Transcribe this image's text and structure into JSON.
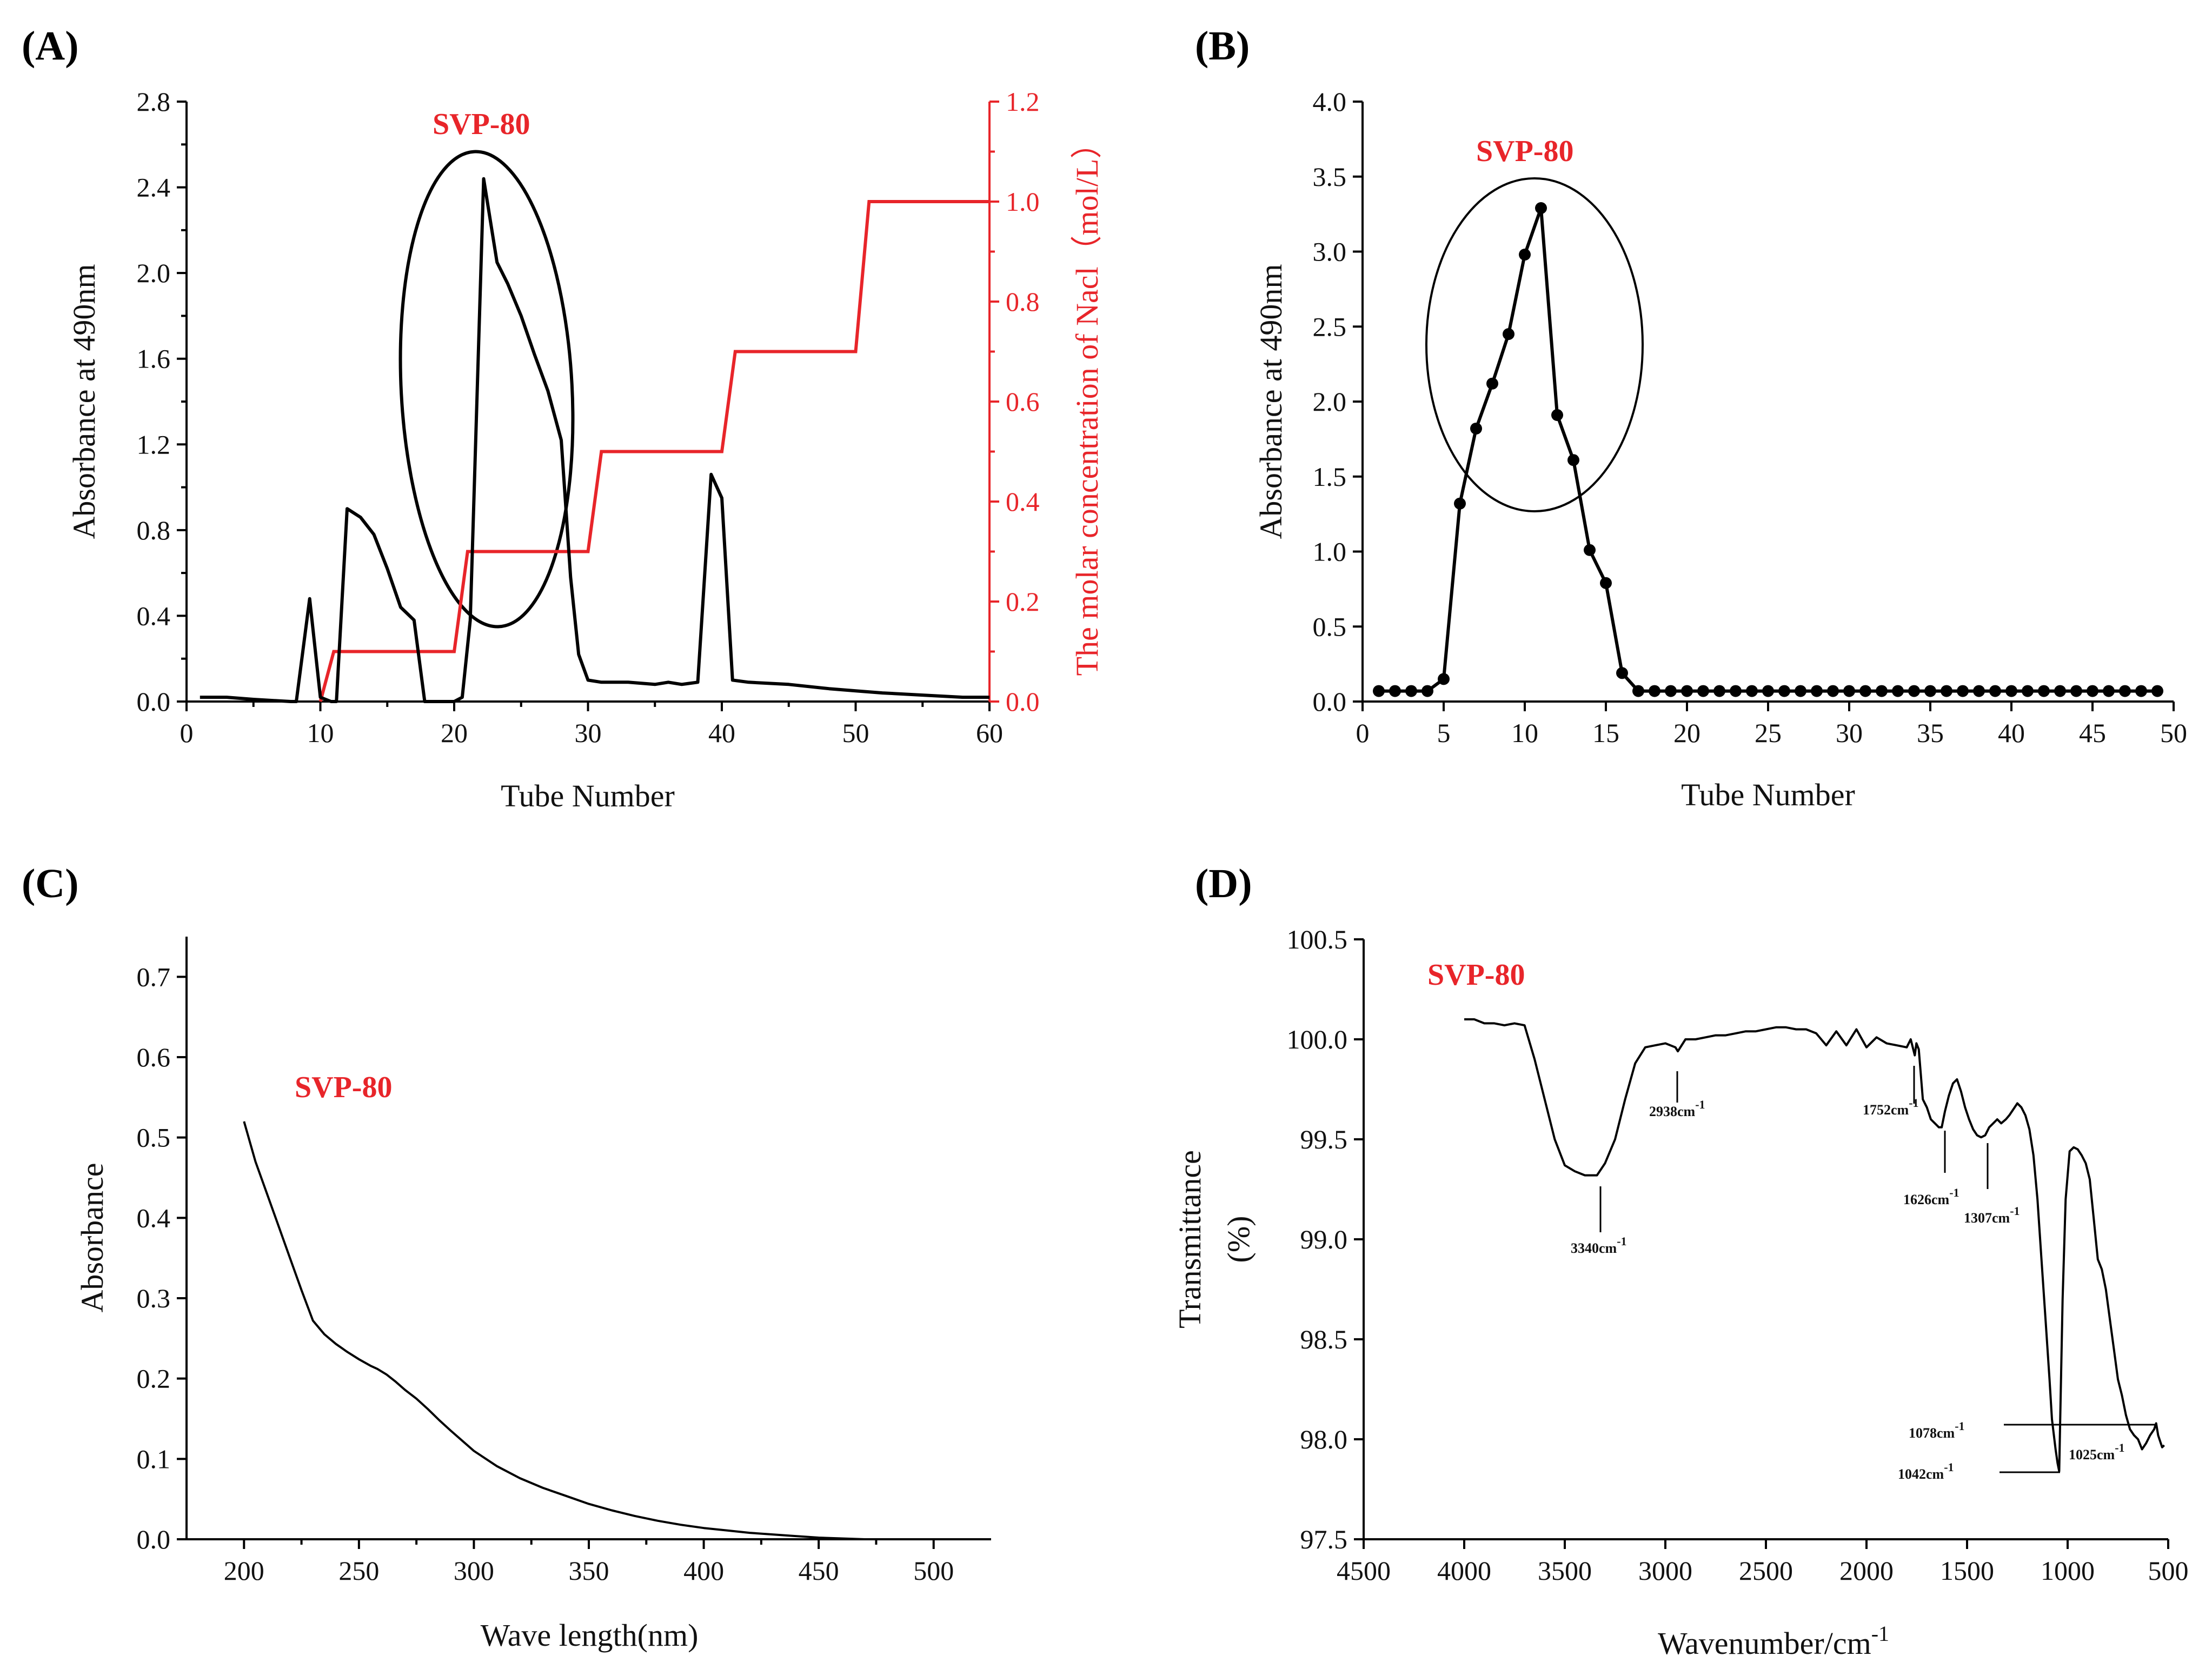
{
  "chart_data": [
    {
      "id": "A",
      "type": "line",
      "panel_label": "(A)",
      "annotation": "SVP-80",
      "xlabel": "Tube Number",
      "ylabel": "Absorbance at 490nm",
      "y2label": "The molar concentration of Nacl（mol/L）",
      "xlim": [
        0,
        60
      ],
      "ylim": [
        0,
        2.8
      ],
      "y2lim": [
        0,
        1.2
      ],
      "xticks": [
        0,
        10,
        20,
        30,
        40,
        50,
        60
      ],
      "yticks": [
        0.0,
        0.4,
        0.8,
        1.2,
        1.6,
        2.0,
        2.4,
        2.8
      ],
      "y2ticks": [
        0.0,
        0.2,
        0.4,
        0.6,
        0.8,
        1.0,
        1.2
      ],
      "xtick_labels": [
        "0",
        "10",
        "20",
        "30",
        "40",
        "50",
        "60"
      ],
      "ytick_labels": [
        "0.0",
        "0.4",
        "0.8",
        "1.2",
        "1.6",
        "2.0",
        "2.4",
        "2.8"
      ],
      "y2tick_labels": [
        "0.0",
        "0.2",
        "0.4",
        "0.6",
        "0.8",
        "1.0",
        "1.2"
      ],
      "series": [
        {
          "name": "Absorbance",
          "axis": "left",
          "color": "#000000",
          "x": [
            1,
            3,
            5,
            7.8,
            8.2,
            9.2,
            10,
            10.8,
            11.2,
            12,
            13,
            14,
            15,
            16,
            17,
            17.8,
            18.2,
            19,
            20,
            20.6,
            21.2,
            22.2,
            23.2,
            24,
            25,
            26,
            27,
            28,
            28.7,
            29.3,
            30,
            31,
            33,
            35,
            36,
            37,
            38.2,
            39.2,
            40,
            40.8,
            42,
            45,
            48,
            50,
            52,
            55,
            58,
            60
          ],
          "y": [
            0.02,
            0.02,
            0.01,
            0.0,
            0.0,
            0.48,
            0.02,
            0.0,
            0.0,
            0.9,
            0.86,
            0.78,
            0.62,
            0.44,
            0.38,
            0.0,
            0.0,
            0.0,
            0.0,
            0.02,
            0.38,
            2.44,
            2.05,
            1.95,
            1.8,
            1.62,
            1.45,
            1.22,
            0.58,
            0.22,
            0.1,
            0.09,
            0.09,
            0.08,
            0.09,
            0.08,
            0.09,
            1.06,
            0.95,
            0.1,
            0.09,
            0.08,
            0.06,
            0.05,
            0.04,
            0.03,
            0.02,
            0.02
          ]
        },
        {
          "name": "NaCl",
          "axis": "right",
          "color": "#e8252a",
          "x": [
            10,
            11,
            20,
            21,
            30,
            31,
            40,
            41,
            50,
            51,
            60
          ],
          "y": [
            0.0,
            0.1,
            0.1,
            0.3,
            0.3,
            0.5,
            0.5,
            0.7,
            0.7,
            1.0,
            1.0
          ]
        }
      ]
    },
    {
      "id": "B",
      "type": "line",
      "panel_label": "(B)",
      "annotation": "SVP-80",
      "xlabel": "Tube Number",
      "ylabel": "Absorbance at 490nm",
      "xlim": [
        0,
        50
      ],
      "ylim": [
        0,
        4.0
      ],
      "xticks": [
        0,
        5,
        10,
        15,
        20,
        25,
        30,
        35,
        40,
        45,
        50
      ],
      "yticks": [
        0.0,
        0.5,
        1.0,
        1.5,
        2.0,
        2.5,
        3.0,
        3.5,
        4.0
      ],
      "xtick_labels": [
        "0",
        "5",
        "10",
        "15",
        "20",
        "25",
        "30",
        "35",
        "40",
        "45",
        "50"
      ],
      "ytick_labels": [
        "0.0",
        "0.5",
        "1.0",
        "1.5",
        "2.0",
        "2.5",
        "3.0",
        "3.5",
        "4.0"
      ],
      "series": [
        {
          "name": "Absorbance",
          "color": "#000000",
          "x": [
            1,
            2,
            3,
            4,
            5,
            6,
            7,
            8,
            9,
            10,
            11,
            12,
            13,
            14,
            15,
            16,
            17,
            18,
            19,
            20,
            21,
            22,
            23,
            24,
            25,
            26,
            27,
            28,
            29,
            30,
            31,
            32,
            33,
            34,
            35,
            36,
            37,
            38,
            39,
            40,
            41,
            42,
            43,
            44,
            45,
            46,
            47,
            48,
            49
          ],
          "y": [
            0.07,
            0.07,
            0.07,
            0.07,
            0.15,
            1.32,
            1.82,
            2.12,
            2.45,
            2.98,
            3.29,
            1.91,
            1.61,
            1.01,
            0.79,
            0.19,
            0.07,
            0.07,
            0.07,
            0.07,
            0.07,
            0.07,
            0.07,
            0.07,
            0.07,
            0.07,
            0.07,
            0.07,
            0.07,
            0.07,
            0.07,
            0.07,
            0.07,
            0.07,
            0.07,
            0.07,
            0.07,
            0.07,
            0.07,
            0.07,
            0.07,
            0.07,
            0.07,
            0.07,
            0.07,
            0.07,
            0.07,
            0.07,
            0.07
          ]
        }
      ]
    },
    {
      "id": "C",
      "type": "line",
      "panel_label": "(C)",
      "annotation": "SVP-80",
      "xlabel": "Wave length(nm)",
      "ylabel": "Absorbance",
      "xlim": [
        175,
        525
      ],
      "ylim": [
        0,
        0.75
      ],
      "xticks": [
        200,
        250,
        300,
        350,
        400,
        450,
        500
      ],
      "yticks": [
        0.0,
        0.1,
        0.2,
        0.3,
        0.4,
        0.5,
        0.6,
        0.7
      ],
      "xtick_labels": [
        "200",
        "250",
        "300",
        "350",
        "400",
        "450",
        "500"
      ],
      "ytick_labels": [
        "0.0",
        "0.1",
        "0.2",
        "0.3",
        "0.4",
        "0.5",
        "0.6",
        "0.7"
      ],
      "series": [
        {
          "name": "Absorbance",
          "color": "#000000",
          "x": [
            200,
            205,
            210,
            215,
            220,
            225,
            230,
            235,
            240,
            245,
            250,
            255,
            258,
            262,
            266,
            270,
            275,
            280,
            285,
            290,
            300,
            310,
            320,
            330,
            340,
            350,
            360,
            370,
            380,
            390,
            400,
            410,
            420,
            430,
            440,
            450,
            460,
            470,
            480,
            490,
            500
          ],
          "y": [
            0.52,
            0.47,
            0.43,
            0.39,
            0.35,
            0.31,
            0.272,
            0.255,
            0.243,
            0.233,
            0.224,
            0.216,
            0.212,
            0.205,
            0.196,
            0.186,
            0.175,
            0.162,
            0.148,
            0.135,
            0.11,
            0.091,
            0.076,
            0.064,
            0.054,
            0.044,
            0.036,
            0.029,
            0.023,
            0.018,
            0.014,
            0.011,
            0.008,
            0.006,
            0.004,
            0.002,
            0.001,
            0.0,
            0.0,
            0.0,
            0.0
          ]
        }
      ]
    },
    {
      "id": "D",
      "type": "line",
      "panel_label": "(D)",
      "annotation": "SVP-80",
      "xlabel": "Wavenumber/cm",
      "xlabel_sup": "-1",
      "ylabel": "Transmittance",
      "ylabel_unit": "(%)",
      "xlim": [
        4500,
        500
      ],
      "ylim": [
        97.5,
        100.5
      ],
      "xticks": [
        4500,
        4000,
        3500,
        3000,
        2500,
        2000,
        1500,
        1000,
        500
      ],
      "yticks": [
        97.5,
        98.0,
        98.5,
        99.0,
        99.5,
        100.0,
        100.5
      ],
      "xtick_labels": [
        "4500",
        "4000",
        "3500",
        "3000",
        "2500",
        "2000",
        "1500",
        "1000",
        "500"
      ],
      "ytick_labels": [
        "97.5",
        "98.0",
        "98.5",
        "99.0",
        "99.5",
        "100.0",
        "100.5"
      ],
      "peak_annotations": [
        "3340cm",
        "2938cm",
        "1752cm",
        "1626cm",
        "1307cm",
        "1078cm",
        "1042cm",
        "1025cm"
      ],
      "peak_sup": "-1",
      "series": [
        {
          "name": "Transmittance",
          "color": "#000000",
          "x": [
            4000,
            3950,
            3900,
            3850,
            3800,
            3750,
            3700,
            3650,
            3600,
            3550,
            3500,
            3450,
            3400,
            3340,
            3300,
            3250,
            3200,
            3150,
            3100,
            3050,
            3000,
            2950,
            2938,
            2900,
            2850,
            2800,
            2750,
            2700,
            2650,
            2600,
            2550,
            2500,
            2450,
            2400,
            2350,
            2300,
            2250,
            2200,
            2150,
            2100,
            2050,
            2000,
            1950,
            1900,
            1850,
            1800,
            1780,
            1760,
            1752,
            1740,
            1720,
            1700,
            1680,
            1660,
            1640,
            1626,
            1610,
            1590,
            1570,
            1550,
            1530,
            1510,
            1490,
            1470,
            1450,
            1430,
            1410,
            1390,
            1370,
            1350,
            1330,
            1307,
            1290,
            1270,
            1250,
            1230,
            1210,
            1190,
            1170,
            1150,
            1130,
            1110,
            1090,
            1078,
            1060,
            1050,
            1042,
            1035,
            1025,
            1010,
            990,
            970,
            950,
            930,
            910,
            890,
            870,
            850,
            830,
            810,
            790,
            770,
            750,
            730,
            710,
            690,
            670,
            650,
            630,
            610,
            590,
            570,
            560,
            550,
            540,
            530,
            520
          ],
          "y": [
            100.1,
            100.1,
            100.08,
            100.08,
            100.07,
            100.08,
            100.07,
            99.9,
            99.7,
            99.5,
            99.37,
            99.34,
            99.32,
            99.32,
            99.38,
            99.5,
            99.7,
            99.88,
            99.96,
            99.97,
            99.98,
            99.96,
            99.94,
            100.0,
            100.0,
            100.01,
            100.02,
            100.02,
            100.03,
            100.04,
            100.04,
            100.05,
            100.06,
            100.06,
            100.05,
            100.05,
            100.03,
            99.97,
            100.04,
            99.97,
            100.05,
            99.96,
            100.01,
            99.98,
            99.97,
            99.96,
            100.0,
            99.92,
            99.98,
            99.95,
            99.7,
            99.66,
            99.6,
            99.58,
            99.56,
            99.56,
            99.64,
            99.72,
            99.78,
            99.8,
            99.74,
            99.66,
            99.6,
            99.55,
            99.52,
            99.51,
            99.52,
            99.56,
            99.58,
            99.6,
            99.58,
            99.6,
            99.62,
            99.65,
            99.68,
            99.66,
            99.62,
            99.55,
            99.42,
            99.2,
            98.9,
            98.6,
            98.3,
            98.1,
            97.95,
            97.88,
            97.84,
            98.2,
            98.7,
            99.2,
            99.44,
            99.46,
            99.45,
            99.42,
            99.38,
            99.3,
            99.1,
            98.9,
            98.85,
            98.75,
            98.6,
            98.45,
            98.3,
            98.22,
            98.12,
            98.05,
            98.02,
            98.0,
            97.95,
            97.98,
            98.02,
            98.05,
            98.08,
            98.02,
            97.99,
            97.96,
            97.97
          ]
        }
      ]
    }
  ]
}
